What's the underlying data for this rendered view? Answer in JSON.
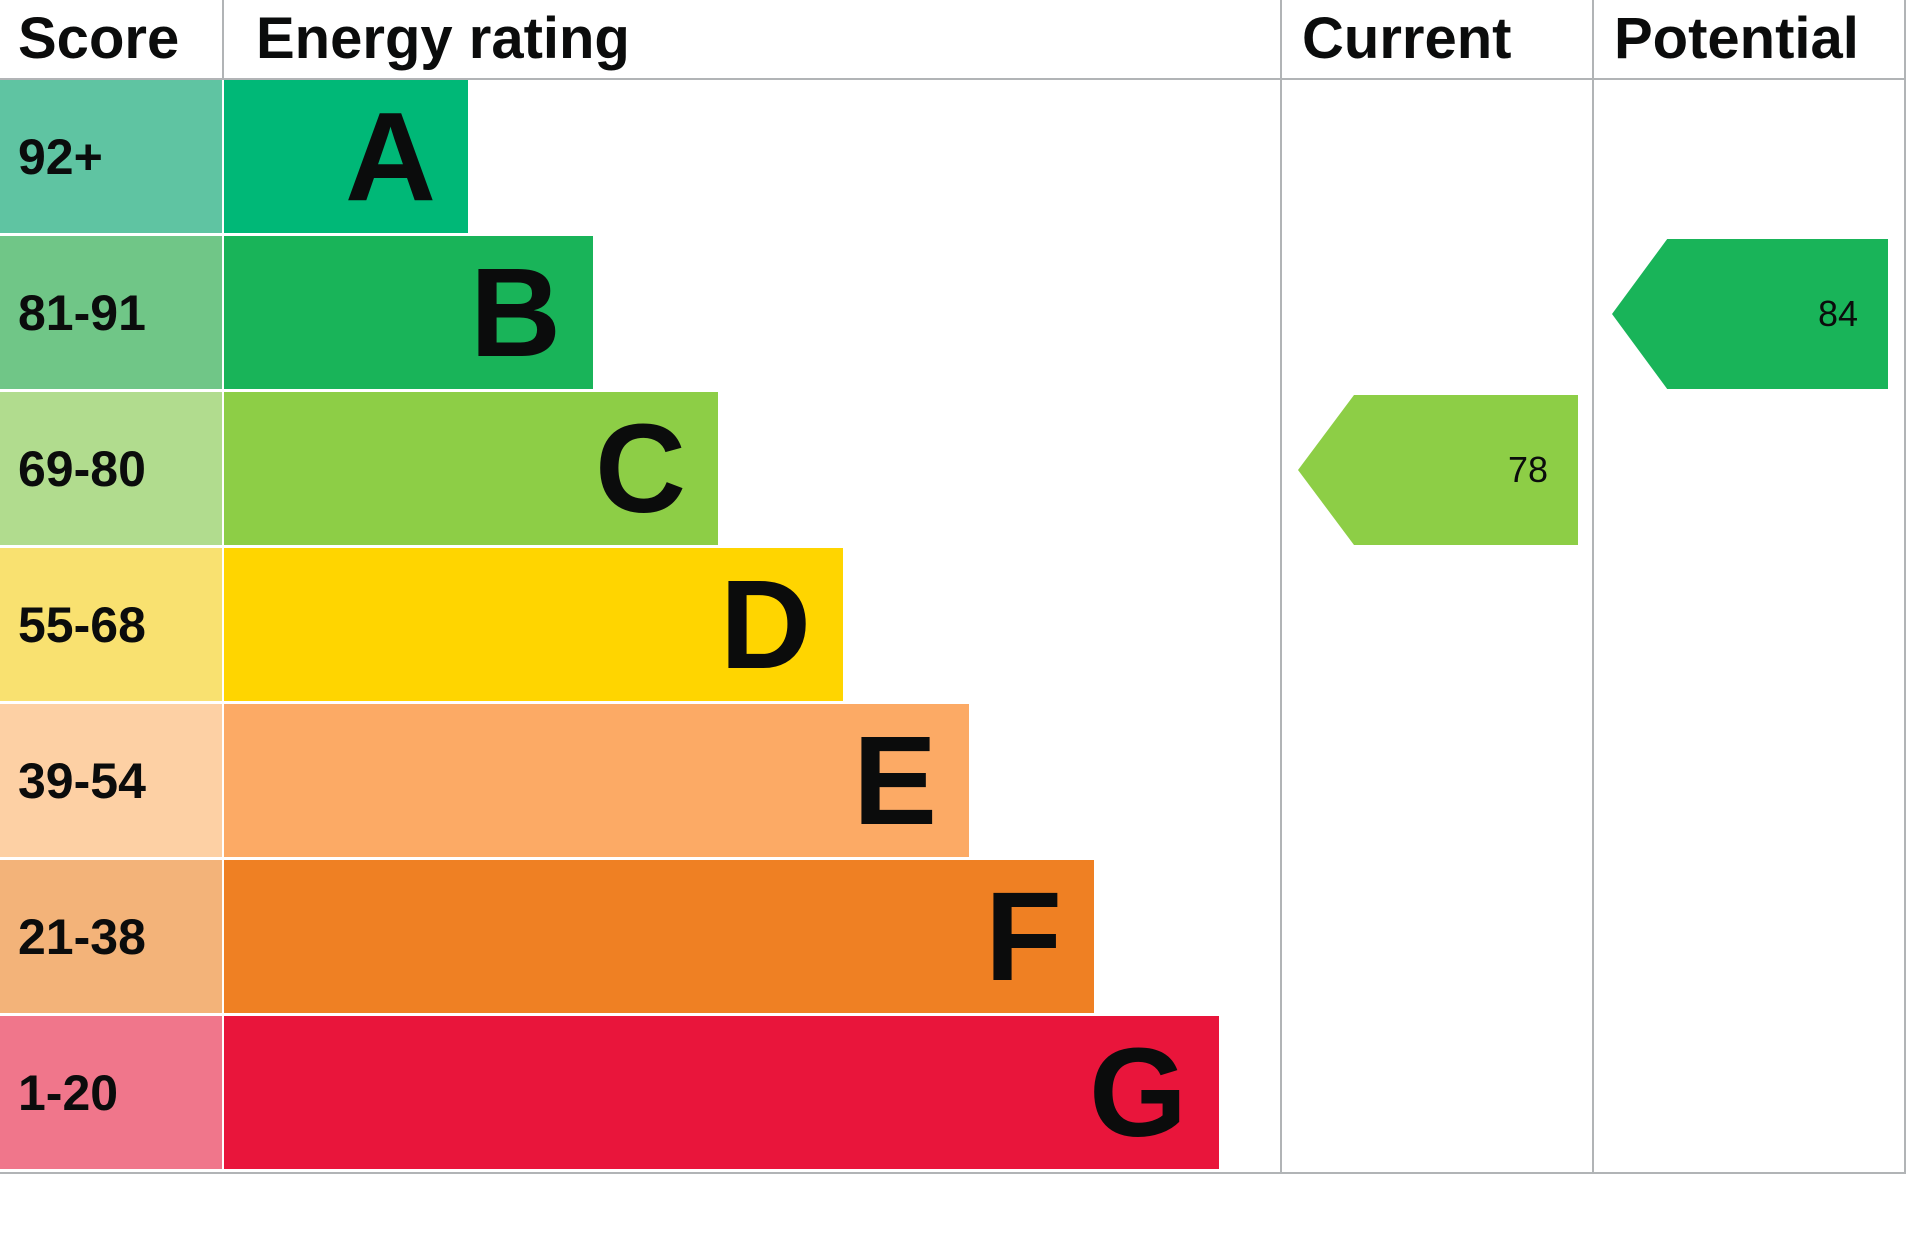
{
  "header": {
    "score": "Score",
    "rating": "Energy rating",
    "current": "Current",
    "potential": "Potential"
  },
  "chart_data": {
    "type": "bar",
    "subtype": "epc-energy-rating-graph",
    "title": "Energy rating",
    "columns": [
      "Score",
      "Energy rating",
      "Current",
      "Potential"
    ],
    "bands": [
      {
        "score": "92+",
        "letter": "A",
        "color": "#00b877",
        "score_tint": "#5fc4a2"
      },
      {
        "score": "81-91",
        "letter": "B",
        "color": "#19b459",
        "score_tint": "#70c687"
      },
      {
        "score": "69-80",
        "letter": "C",
        "color": "#8dce46",
        "score_tint": "#b1dc8e"
      },
      {
        "score": "55-68",
        "letter": "D",
        "color": "#ffd500",
        "score_tint": "#f9e170"
      },
      {
        "score": "39-54",
        "letter": "E",
        "color": "#fcaa65",
        "score_tint": "#fdd0a4"
      },
      {
        "score": "21-38",
        "letter": "F",
        "color": "#ef8023",
        "score_tint": "#f3b379"
      },
      {
        "score": "1-20",
        "letter": "G",
        "color": "#e9153b",
        "score_tint": "#f0768b"
      }
    ],
    "current": {
      "value": 78,
      "band": "C",
      "color": "#8dce46"
    },
    "potential": {
      "value": 84,
      "band": "B",
      "color": "#19b459"
    },
    "grid": "off",
    "legend": "none"
  }
}
